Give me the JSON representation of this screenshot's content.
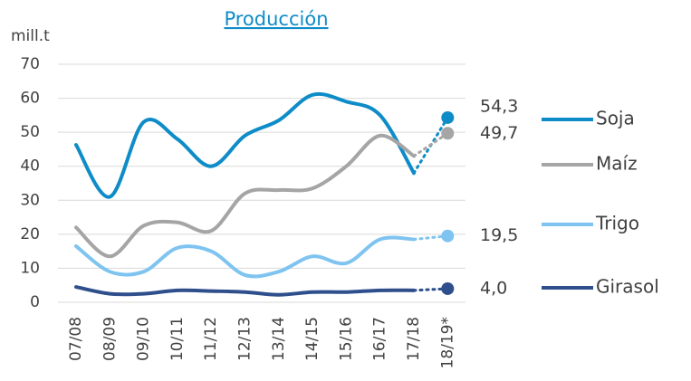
{
  "chart_data": {
    "type": "line",
    "title": "Producción",
    "y_label": "mill.t",
    "categories": [
      "07/08",
      "08/09",
      "09/10",
      "10/11",
      "11/12",
      "12/13",
      "13/14",
      "14/15",
      "15/16",
      "16/17",
      "17/18",
      "18/19*"
    ],
    "series": [
      {
        "name": "Soja",
        "color": "#0e8cc8",
        "values": [
          46.3,
          31,
          53,
          48,
          40,
          49,
          53.5,
          61,
          59,
          55,
          38,
          54.3
        ],
        "value_labels": [
          null,
          null,
          null,
          null,
          null,
          null,
          null,
          null,
          null,
          null,
          null,
          "54,3"
        ]
      },
      {
        "name": "Maíz",
        "color": "#a5a5a5",
        "values": [
          22,
          13.5,
          22.5,
          23.5,
          21,
          32,
          33,
          33.5,
          40,
          49,
          43,
          49.7
        ],
        "value_labels": [
          null,
          null,
          null,
          null,
          null,
          null,
          null,
          null,
          null,
          null,
          null,
          "49,7"
        ]
      },
      {
        "name": "Trigo",
        "color": "#7fc4f0",
        "values": [
          16.5,
          9,
          9,
          16,
          15,
          8,
          9,
          13.5,
          11.5,
          18.5,
          18.5,
          19.5
        ],
        "value_labels": [
          null,
          null,
          null,
          null,
          null,
          null,
          null,
          null,
          null,
          null,
          null,
          "19,5"
        ]
      },
      {
        "name": "Girasol",
        "color": "#2e4e8c",
        "values": [
          4.5,
          2.5,
          2.5,
          3.5,
          3.3,
          3,
          2.2,
          3,
          3,
          3.5,
          3.5,
          4.0
        ],
        "value_labels": [
          null,
          null,
          null,
          null,
          null,
          null,
          null,
          null,
          null,
          null,
          null,
          "4,0"
        ]
      }
    ],
    "ylim": [
      0,
      70
    ],
    "yticks": [
      0,
      10,
      20,
      30,
      40,
      50,
      60,
      70
    ],
    "grid": true,
    "legend": "right"
  }
}
